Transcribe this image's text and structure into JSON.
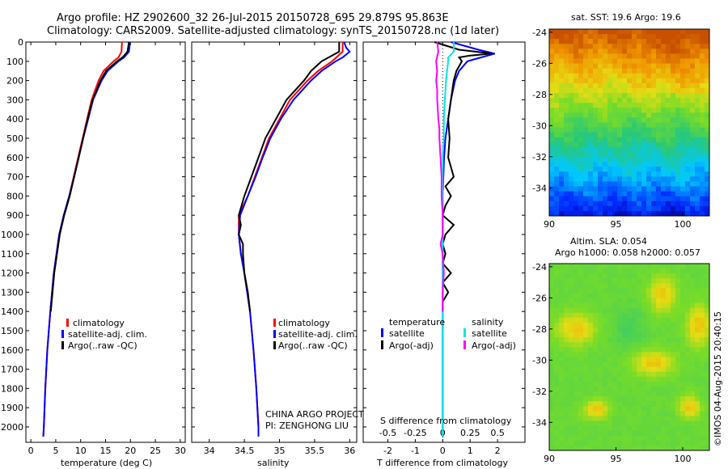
{
  "header": {
    "line1": "Argo profile: HZ 2902600_32 26-Jul-2015 20150728_695 29.879S 95.863E",
    "line2": "Climatology: CARS2009. Satellite-adjusted climatology: synTS_20150728.nc (1d later)"
  },
  "credits": {
    "project": "CHINA ARGO PROJECT",
    "pi": "PI: ZENGHONG LIU",
    "imos": "©IMOS 04-Aug-2015 20:40:15"
  },
  "colors": {
    "climatology": "#ff0000",
    "satellite": "#0000ff",
    "argo": "#000000",
    "sal_satellite": "#00e6e6",
    "sal_argo": "#ff00ff"
  },
  "chart_data": [
    {
      "type": "line",
      "panel": "temperature",
      "xlabel": "temperature (deg C)",
      "ylabel": "",
      "xlim": [
        -1,
        31
      ],
      "ylim": [
        2080,
        0
      ],
      "y_reversed": true,
      "xticks": [
        "0",
        "5",
        "10",
        "15",
        "20",
        "25",
        "30"
      ],
      "yticks": [
        "0",
        "100",
        "200",
        "300",
        "400",
        "500",
        "600",
        "700",
        "800",
        "900",
        "1000",
        "1100",
        "1200",
        "1300",
        "1400",
        "1500",
        "1600",
        "1700",
        "1800",
        "1900",
        "2000"
      ],
      "legend": [
        "climatology",
        "satellite-adj. clim.",
        "Argo(..raw -QC)"
      ],
      "series": [
        {
          "name": "climatology",
          "color": "#ff0000",
          "depth": [
            0,
            50,
            80,
            100,
            150,
            200,
            300,
            400,
            500,
            600,
            700,
            800,
            900,
            1000,
            1200,
            1400,
            1600,
            1800,
            2000,
            2050
          ],
          "values": [
            18.3,
            18.2,
            17.6,
            16.6,
            14.6,
            13.6,
            12.2,
            11.3,
            10.4,
            9.5,
            8.6,
            7.7,
            6.6,
            5.7,
            4.6,
            3.9,
            3.3,
            2.9,
            2.6,
            2.5
          ]
        },
        {
          "name": "satellite-adj. clim.",
          "color": "#0000ff",
          "depth": [
            0,
            50,
            80,
            100,
            150,
            200,
            300,
            400,
            500,
            600,
            700,
            800,
            900,
            1000,
            1200,
            1400,
            1600,
            1800,
            2000,
            2050
          ],
          "values": [
            19.9,
            19.7,
            18.7,
            17.6,
            15.4,
            14.2,
            12.5,
            11.5,
            10.5,
            9.6,
            8.7,
            7.7,
            6.6,
            5.7,
            4.6,
            3.9,
            3.3,
            2.9,
            2.6,
            2.5
          ]
        },
        {
          "name": "Argo(..raw -QC)",
          "color": "#000000",
          "depth": [
            0,
            50,
            80,
            100,
            150,
            200,
            300,
            400,
            500,
            600,
            700,
            800,
            900,
            1000,
            1200,
            1400
          ],
          "values": [
            19.7,
            19.4,
            18.4,
            17.3,
            15.1,
            14.0,
            12.4,
            11.4,
            10.5,
            9.6,
            8.7,
            7.8,
            6.7,
            5.8,
            4.7,
            4.0
          ]
        }
      ]
    },
    {
      "type": "line",
      "panel": "salinity",
      "xlabel": "salinity",
      "ylabel": "",
      "xlim": [
        33.75,
        36.1
      ],
      "ylim": [
        2080,
        0
      ],
      "y_reversed": true,
      "xticks": [
        "34",
        "34.5",
        "35",
        "35.5",
        "36"
      ],
      "legend": [
        "climatology",
        "satellite-adj. clim.",
        "Argo(..raw -QC)"
      ],
      "series": [
        {
          "name": "climatology",
          "color": "#ff0000",
          "depth": [
            0,
            50,
            100,
            150,
            200,
            300,
            400,
            500,
            600,
            700,
            800,
            900,
            1000,
            1100,
            1200,
            1400,
            1600,
            1800,
            2000,
            2050
          ],
          "values": [
            35.9,
            35.9,
            35.75,
            35.55,
            35.4,
            35.15,
            35.0,
            34.85,
            34.75,
            34.65,
            34.55,
            34.42,
            34.42,
            34.45,
            34.5,
            34.58,
            34.63,
            34.67,
            34.7,
            34.7
          ]
        },
        {
          "name": "satellite-adj. clim.",
          "color": "#0000ff",
          "depth": [
            0,
            30,
            50,
            80,
            100,
            150,
            200,
            300,
            400,
            500,
            600,
            700,
            800,
            900,
            1000,
            1100,
            1200,
            1400,
            1600,
            1800,
            2000,
            2050
          ],
          "values": [
            35.92,
            35.95,
            36.0,
            35.9,
            35.8,
            35.6,
            35.45,
            35.2,
            35.02,
            34.87,
            34.76,
            34.66,
            34.55,
            34.44,
            34.42,
            34.45,
            34.5,
            34.58,
            34.63,
            34.67,
            34.7,
            34.7
          ]
        },
        {
          "name": "Argo(..raw -QC)",
          "color": "#000000",
          "depth": [
            0,
            50,
            80,
            100,
            150,
            200,
            300,
            400,
            500,
            600,
            700,
            800,
            900,
            950,
            1000,
            1050,
            1100,
            1200,
            1300,
            1400
          ],
          "values": [
            35.85,
            35.85,
            35.7,
            35.6,
            35.45,
            35.35,
            35.1,
            34.95,
            34.8,
            34.7,
            34.6,
            34.5,
            34.42,
            34.45,
            34.42,
            34.48,
            34.48,
            34.5,
            34.55,
            34.58
          ]
        }
      ]
    },
    {
      "type": "line",
      "panel": "difference",
      "xlabel": "T difference from climatology",
      "xlabel2": "S difference from climatology",
      "xlim": [
        -2.9,
        3.0
      ],
      "ylim": [
        2080,
        0
      ],
      "y_reversed": true,
      "xticks": [
        "-2",
        "-1",
        "0",
        "1",
        "2"
      ],
      "xticks2": [
        "-0.5",
        "-0.25",
        "0",
        "0.25",
        "0.5"
      ],
      "legend_titles": [
        "temperature",
        "salinity"
      ],
      "legend": [
        "satellite",
        "Argo(-adj)",
        "satellite",
        "Argo(-adj)"
      ],
      "series": [
        {
          "name": "satellite",
          "quantity": "temperature",
          "color": "#0000ff",
          "depth": [
            0,
            40,
            60,
            80,
            100,
            150,
            200,
            300,
            400,
            500,
            600,
            800,
            1000,
            1200,
            1500,
            2050
          ],
          "values": [
            0.3,
            1.3,
            1.9,
            1.4,
            0.9,
            0.6,
            0.45,
            0.3,
            0.2,
            0.1,
            0.05,
            0.0,
            0.0,
            0.0,
            0.0,
            0.0
          ]
        },
        {
          "name": "Argo(-adj)",
          "quantity": "temperature",
          "color": "#000000",
          "depth": [
            0,
            40,
            60,
            70,
            80,
            100,
            150,
            200,
            300,
            400,
            500,
            600,
            700,
            750,
            800,
            850,
            900,
            950,
            1000,
            1050,
            1100,
            1150,
            1200,
            1250,
            1300,
            1350,
            1400
          ],
          "values": [
            -0.3,
            0.6,
            1.8,
            1.0,
            0.6,
            0.7,
            0.5,
            0.4,
            0.3,
            0.2,
            0.25,
            0.2,
            0.4,
            0.1,
            0.3,
            0.1,
            0.0,
            0.4,
            0.1,
            0.0,
            0.1,
            0.0,
            0.3,
            0.0,
            0.2,
            0.0,
            0.0
          ]
        },
        {
          "name": "satellite",
          "quantity": "salinity",
          "color": "#00e6e6",
          "depth": [
            0,
            50,
            80,
            100,
            150,
            200,
            300,
            400,
            500,
            600,
            800,
            1000,
            1200,
            1500,
            2050
          ],
          "values": [
            0.1,
            0.1,
            0.05,
            0.05,
            0.04,
            0.03,
            0.02,
            0.01,
            0.01,
            0.0,
            0.0,
            0.0,
            0.0,
            0.0,
            0.0
          ]
        },
        {
          "name": "Argo(-adj)",
          "quantity": "salinity",
          "color": "#ff00ff",
          "depth": [
            0,
            50,
            100,
            150,
            200,
            250,
            300,
            400,
            450,
            500,
            600,
            700,
            800,
            900,
            1000,
            1050,
            1100,
            1200,
            1300,
            1400
          ],
          "values": [
            -0.05,
            -0.04,
            -0.06,
            -0.05,
            -0.06,
            -0.05,
            -0.05,
            -0.04,
            -0.03,
            -0.03,
            -0.02,
            -0.01,
            -0.01,
            0.0,
            0.0,
            -0.02,
            0.0,
            0.01,
            0.0,
            0.0
          ]
        }
      ]
    },
    {
      "type": "heatmap",
      "panel": "sst_map",
      "title": "sat. SST: 19.6 Argo: 19.6",
      "xlim": [
        90,
        102
      ],
      "ylim": [
        -35.8,
        -23.8
      ],
      "xticks": [
        "90",
        "95",
        "100"
      ],
      "yticks": [
        "-24",
        "-26",
        "-28",
        "-30",
        "-32",
        "-34"
      ]
    },
    {
      "type": "heatmap",
      "panel": "sla_map",
      "title": "Altim. SLA: 0.054",
      "title2": "Argo h1000: 0.058 h2000: 0.057",
      "xlim": [
        90,
        102
      ],
      "ylim": [
        -35.8,
        -23.8
      ],
      "xticks": [
        "90",
        "95",
        "100"
      ],
      "yticks": [
        "-24",
        "-26",
        "-28",
        "-30",
        "-32",
        "-34"
      ]
    }
  ]
}
